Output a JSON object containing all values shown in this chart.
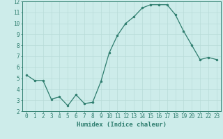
{
  "x": [
    0,
    1,
    2,
    3,
    4,
    5,
    6,
    7,
    8,
    9,
    10,
    11,
    12,
    13,
    14,
    15,
    16,
    17,
    18,
    19,
    20,
    21,
    22,
    23
  ],
  "y": [
    5.3,
    4.8,
    4.8,
    3.1,
    3.3,
    2.5,
    3.5,
    2.7,
    2.8,
    4.7,
    7.3,
    8.9,
    10.0,
    10.6,
    11.4,
    11.7,
    11.7,
    11.7,
    10.8,
    9.3,
    8.0,
    6.7,
    6.9,
    6.7
  ],
  "line_color": "#2e7d6e",
  "marker_color": "#2e7d6e",
  "bg_color": "#cdecea",
  "grid_color": "#b8dbd8",
  "xlabel": "Humidex (Indice chaleur)",
  "xlabel_fontsize": 6.5,
  "tick_fontsize": 5.5,
  "ylim": [
    2,
    12
  ],
  "xlim": [
    -0.5,
    23.5
  ],
  "yticks": [
    2,
    3,
    4,
    5,
    6,
    7,
    8,
    9,
    10,
    11,
    12
  ],
  "xticks": [
    0,
    1,
    2,
    3,
    4,
    5,
    6,
    7,
    8,
    9,
    10,
    11,
    12,
    13,
    14,
    15,
    16,
    17,
    18,
    19,
    20,
    21,
    22,
    23
  ]
}
